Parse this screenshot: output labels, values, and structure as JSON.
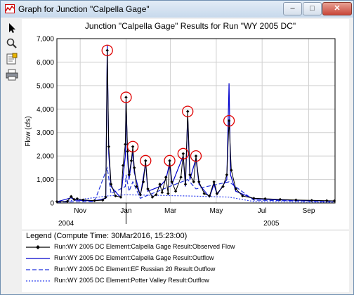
{
  "window": {
    "title": "Graph for Junction \"Calpella Gage\"",
    "minimize": "–",
    "maximize": "□",
    "close": "✕"
  },
  "toolbar": {
    "tools": [
      "pointer-icon",
      "zoom-icon",
      "properties-icon",
      "print-icon"
    ]
  },
  "chart_data": {
    "type": "line",
    "title": "Junction \"Calpella Gage\" Results for Run \"WY 2005 DC\"",
    "ylabel": "Flow (cfs)",
    "xlabel": "",
    "ylim": [
      0,
      7000
    ],
    "yticks": [
      "0",
      "1,000",
      "2,000",
      "3,000",
      "4,000",
      "5,000",
      "6,000",
      "7,000"
    ],
    "xlim": [
      "2004-10-01",
      "2005-10-06"
    ],
    "x_tick_labels": [
      {
        "label": "Nov",
        "date": "2004-11-01"
      },
      {
        "label": "Jan",
        "date": "2005-01-01"
      },
      {
        "label": "Mar",
        "date": "2005-03-01"
      },
      {
        "label": "May",
        "date": "2005-05-01"
      },
      {
        "label": "Jul",
        "date": "2005-07-01"
      },
      {
        "label": "Sep",
        "date": "2005-09-01"
      }
    ],
    "year_labels": [
      {
        "label": "2004",
        "date": "2004-10-01"
      },
      {
        "label": "2005",
        "date": "2005-07-01"
      }
    ],
    "grid": true,
    "series": [
      {
        "name": "Run:WY 2005 DC Element:Calpella Gage Result:Observed Flow",
        "color": "#000000",
        "style": "solid",
        "marker": "diamond",
        "points": [
          [
            "2004-10-01",
            60
          ],
          [
            "2004-10-15",
            70
          ],
          [
            "2004-10-20",
            280
          ],
          [
            "2004-10-24",
            150
          ],
          [
            "2004-10-28",
            180
          ],
          [
            "2004-11-05",
            130
          ],
          [
            "2004-11-20",
            100
          ],
          [
            "2004-12-01",
            120
          ],
          [
            "2004-12-05",
            250
          ],
          [
            "2004-12-07",
            6500
          ],
          [
            "2004-12-09",
            2400
          ],
          [
            "2004-12-12",
            800
          ],
          [
            "2004-12-18",
            300
          ],
          [
            "2004-12-25",
            250
          ],
          [
            "2004-12-28",
            1600
          ],
          [
            "2004-12-31",
            2500
          ],
          [
            "2005-01-01",
            4500
          ],
          [
            "2005-01-03",
            2200
          ],
          [
            "2005-01-05",
            1200
          ],
          [
            "2005-01-08",
            1800
          ],
          [
            "2005-01-10",
            2400
          ],
          [
            "2005-01-12",
            1500
          ],
          [
            "2005-01-15",
            700
          ],
          [
            "2005-01-20",
            350
          ],
          [
            "2005-01-24",
            900
          ],
          [
            "2005-01-27",
            1800
          ],
          [
            "2005-01-30",
            600
          ],
          [
            "2005-02-05",
            250
          ],
          [
            "2005-02-10",
            350
          ],
          [
            "2005-02-15",
            800
          ],
          [
            "2005-02-18",
            450
          ],
          [
            "2005-02-23",
            1100
          ],
          [
            "2005-02-26",
            400
          ],
          [
            "2005-02-28",
            1800
          ],
          [
            "2005-03-03",
            900
          ],
          [
            "2005-03-08",
            500
          ],
          [
            "2005-03-15",
            1100
          ],
          [
            "2005-03-18",
            2100
          ],
          [
            "2005-03-21",
            800
          ],
          [
            "2005-03-24",
            3900
          ],
          [
            "2005-03-27",
            1200
          ],
          [
            "2005-04-01",
            900
          ],
          [
            "2005-04-04",
            2000
          ],
          [
            "2005-04-08",
            900
          ],
          [
            "2005-04-15",
            400
          ],
          [
            "2005-04-22",
            300
          ],
          [
            "2005-04-28",
            900
          ],
          [
            "2005-05-02",
            400
          ],
          [
            "2005-05-10",
            700
          ],
          [
            "2005-05-15",
            1200
          ],
          [
            "2005-05-18",
            3500
          ],
          [
            "2005-05-21",
            1400
          ],
          [
            "2005-05-27",
            600
          ],
          [
            "2005-06-05",
            300
          ],
          [
            "2005-06-20",
            200
          ],
          [
            "2005-07-05",
            180
          ],
          [
            "2005-07-25",
            150
          ],
          [
            "2005-08-15",
            130
          ],
          [
            "2005-09-05",
            110
          ],
          [
            "2005-09-25",
            100
          ],
          [
            "2005-10-05",
            90
          ]
        ]
      },
      {
        "name": "Run:WY 2005 DC Element:Calpella Gage Result:Outflow",
        "color": "#0000cc",
        "style": "solid",
        "marker": "none",
        "points": [
          [
            "2004-10-01",
            50
          ],
          [
            "2004-10-20",
            220
          ],
          [
            "2004-10-25",
            120
          ],
          [
            "2004-11-20",
            90
          ],
          [
            "2004-12-05",
            200
          ],
          [
            "2004-12-07",
            6700
          ],
          [
            "2004-12-09",
            2100
          ],
          [
            "2004-12-12",
            700
          ],
          [
            "2004-12-25",
            220
          ],
          [
            "2004-12-31",
            2000
          ],
          [
            "2005-01-01",
            4400
          ],
          [
            "2005-01-03",
            1900
          ],
          [
            "2005-01-05",
            1000
          ],
          [
            "2005-01-10",
            2200
          ],
          [
            "2005-01-12",
            1300
          ],
          [
            "2005-01-20",
            300
          ],
          [
            "2005-01-27",
            1700
          ],
          [
            "2005-01-30",
            500
          ],
          [
            "2005-02-15",
            700
          ],
          [
            "2005-02-23",
            1000
          ],
          [
            "2005-02-28",
            1700
          ],
          [
            "2005-03-03",
            800
          ],
          [
            "2005-03-18",
            2000
          ],
          [
            "2005-03-21",
            700
          ],
          [
            "2005-03-24",
            3700
          ],
          [
            "2005-03-27",
            1000
          ],
          [
            "2005-04-04",
            1900
          ],
          [
            "2005-04-08",
            800
          ],
          [
            "2005-04-22",
            250
          ],
          [
            "2005-04-28",
            800
          ],
          [
            "2005-05-02",
            350
          ],
          [
            "2005-05-15",
            1000
          ],
          [
            "2005-05-18",
            5100
          ],
          [
            "2005-05-20",
            1200
          ],
          [
            "2005-05-27",
            500
          ],
          [
            "2005-06-20",
            180
          ],
          [
            "2005-07-25",
            130
          ],
          [
            "2005-09-05",
            100
          ],
          [
            "2005-10-05",
            80
          ]
        ]
      },
      {
        "name": "Run:WY 2005 DC Element:EF Russian 20 Result:Outflow",
        "color": "#2233dd",
        "style": "dashed",
        "marker": "none",
        "points": [
          [
            "2004-10-01",
            40
          ],
          [
            "2004-11-20",
            60
          ],
          [
            "2004-12-07",
            1500
          ],
          [
            "2004-12-12",
            400
          ],
          [
            "2004-12-31",
            700
          ],
          [
            "2005-01-01",
            1200
          ],
          [
            "2005-01-05",
            500
          ],
          [
            "2005-01-10",
            900
          ],
          [
            "2005-01-20",
            200
          ],
          [
            "2005-02-28",
            700
          ],
          [
            "2005-03-24",
            1000
          ],
          [
            "2005-04-04",
            600
          ],
          [
            "2005-05-18",
            900
          ],
          [
            "2005-06-20",
            120
          ],
          [
            "2005-10-05",
            60
          ]
        ]
      },
      {
        "name": "Run:WY 2005 DC Element:Potter Valley Result:Outflow",
        "color": "#3344ee",
        "style": "dotted",
        "marker": "none",
        "points": [
          [
            "2004-10-01",
            20
          ],
          [
            "2004-12-07",
            300
          ],
          [
            "2005-01-01",
            350
          ],
          [
            "2005-03-24",
            300
          ],
          [
            "2005-05-18",
            250
          ],
          [
            "2005-06-20",
            60
          ],
          [
            "2005-10-05",
            30
          ]
        ]
      }
    ],
    "highlights": [
      {
        "date": "2004-12-07",
        "value": 6500
      },
      {
        "date": "2005-01-01",
        "value": 4500
      },
      {
        "date": "2005-01-10",
        "value": 2400
      },
      {
        "date": "2005-01-27",
        "value": 1800
      },
      {
        "date": "2005-02-28",
        "value": 1800
      },
      {
        "date": "2005-03-18",
        "value": 2100
      },
      {
        "date": "2005-03-24",
        "value": 3900
      },
      {
        "date": "2005-04-04",
        "value": 2000
      },
      {
        "date": "2005-05-18",
        "value": 3500
      }
    ],
    "highlight_color": "#e00000"
  },
  "legend": {
    "title": "Legend (Compute Time: 30Mar2016, 15:23:00)"
  }
}
